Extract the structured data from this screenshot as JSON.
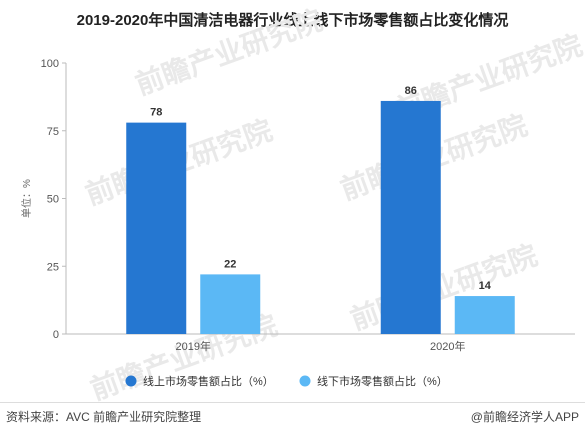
{
  "title": "2019-2020年中国清洁电器行业线上线下市场零售额占比变化情况",
  "watermark": "前瞻产业研究院",
  "footer": {
    "source": "资料来源：AVC 前瞻产业研究院整理",
    "credit": "@前瞻经济学人APP"
  },
  "chart_data": {
    "type": "bar",
    "categories": [
      "2019年",
      "2020年"
    ],
    "series": [
      {
        "name": "线上市场零售额占比（%）",
        "values": [
          78,
          86
        ],
        "color": "#2577d1"
      },
      {
        "name": "线下市场零售额占比（%）",
        "values": [
          22,
          14
        ],
        "color": "#5bb8f5"
      }
    ],
    "ylabel": "单位：%",
    "ylim": [
      0,
      100
    ],
    "yticks": [
      0,
      25,
      50,
      75,
      100
    ],
    "grid": false,
    "legend": "bottom",
    "data_labels": true
  }
}
